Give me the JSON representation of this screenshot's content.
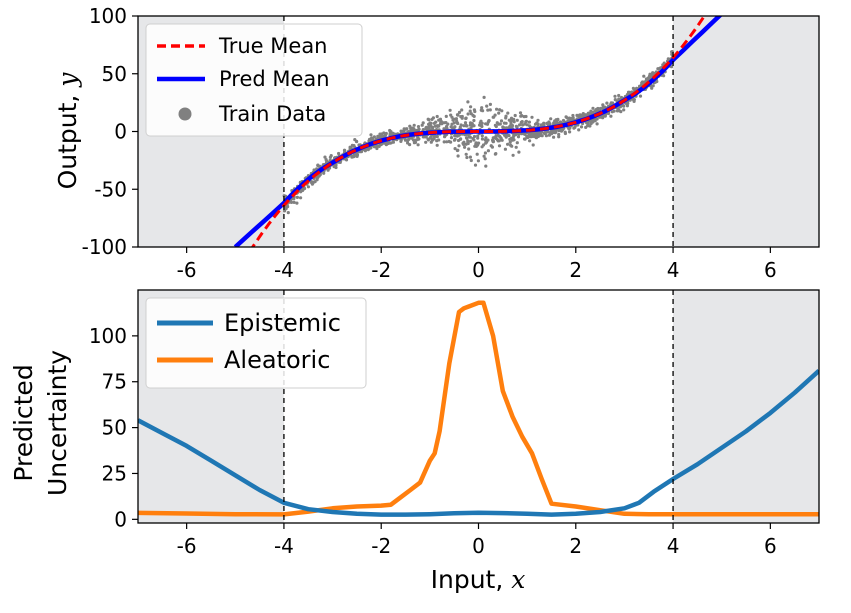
{
  "chart_data": [
    {
      "type": "line",
      "xlim": [
        -7,
        7
      ],
      "ylim": [
        -100,
        100
      ],
      "ylabel": "Output, y",
      "xticks": [
        -6,
        -4,
        -2,
        0,
        2,
        4,
        6
      ],
      "yticks": [
        -100,
        -50,
        0,
        50,
        100
      ],
      "train_region": [
        -4,
        4
      ],
      "shaded_regions": [
        [
          -7,
          -4
        ],
        [
          4,
          7
        ]
      ],
      "legend_position": "top-left",
      "series": [
        {
          "name": "True Mean",
          "style": "dashed",
          "color": "#ff0000",
          "formula": "y = x^3"
        },
        {
          "name": "Pred Mean",
          "style": "solid",
          "color": "#0000ff",
          "x": [
            -5.0,
            -4.8,
            -4.6,
            -4.4,
            -4.2,
            -4.0,
            -3.8,
            -3.6,
            -3.4,
            -3.2,
            -3.0,
            -2.8,
            -2.6,
            -2.4,
            -2.2,
            -2.0,
            -1.8,
            -1.6,
            -1.4,
            -1.2,
            -1.0,
            -0.8,
            -0.6,
            -0.4,
            -0.2,
            0.0,
            0.2,
            0.4,
            0.6,
            0.8,
            1.0,
            1.2,
            1.4,
            1.6,
            1.8,
            2.0,
            2.2,
            2.4,
            2.6,
            2.8,
            3.0,
            3.2,
            3.4,
            3.6,
            3.8,
            4.0,
            4.2,
            4.4,
            4.6,
            4.8,
            5.0
          ],
          "y": [
            -100,
            -92.4,
            -84.8,
            -77.2,
            -69.6,
            -62,
            -53,
            -45,
            -38,
            -32,
            -27,
            -22,
            -17.5,
            -13.8,
            -10.6,
            -8,
            -5.8,
            -4,
            -2.7,
            -1.7,
            -1,
            -0.6,
            -0.3,
            -0.1,
            0,
            0,
            0,
            0.1,
            0.3,
            0.6,
            1,
            1.7,
            2.7,
            4,
            5.8,
            8,
            10.6,
            13.8,
            17.5,
            22,
            27,
            32,
            38,
            45,
            53,
            62,
            70,
            78,
            86,
            94,
            102
          ]
        },
        {
          "name": "Train Data",
          "style": "scatter",
          "color": "#808080",
          "x_range": [
            -4,
            4
          ],
          "model": "y = x^3 + noise, noise largest near x = 0"
        }
      ]
    },
    {
      "type": "line",
      "xlim": [
        -7,
        7
      ],
      "ylim": [
        -2,
        125
      ],
      "xlabel": "Input, x",
      "ylabel": "Predicted Uncertainty",
      "xticks": [
        -6,
        -4,
        -2,
        0,
        2,
        4,
        6
      ],
      "yticks": [
        0,
        25,
        50,
        75,
        100
      ],
      "train_region": [
        -4,
        4
      ],
      "shaded_regions": [
        [
          -7,
          -4
        ],
        [
          4,
          7
        ]
      ],
      "legend_position": "top-left",
      "series": [
        {
          "name": "Epistemic",
          "color": "#1f77b4",
          "x": [
            -7,
            -6.5,
            -6,
            -5.5,
            -5,
            -4.5,
            -4,
            -3.5,
            -3,
            -2.5,
            -2,
            -1.5,
            -1,
            -0.5,
            0,
            0.5,
            1,
            1.5,
            2,
            2.5,
            3,
            3.3,
            3.6,
            4,
            4.5,
            5,
            5.5,
            6,
            6.5,
            7
          ],
          "y": [
            54,
            47,
            40,
            32,
            24,
            16,
            9,
            5.5,
            4,
            3,
            2.6,
            2.6,
            2.8,
            3.3,
            3.6,
            3.4,
            3,
            2.6,
            3,
            4,
            6,
            9,
            15,
            22,
            30,
            39,
            48,
            58,
            69,
            81
          ]
        },
        {
          "name": "Aleatoric",
          "color": "#ff7f0e",
          "x": [
            -7,
            -6,
            -5,
            -4,
            -3.5,
            -3,
            -2.5,
            -2,
            -1.8,
            -1.6,
            -1.4,
            -1.2,
            -1.0,
            -0.9,
            -0.8,
            -0.6,
            -0.4,
            -0.3,
            -0.2,
            0,
            0.1,
            0.3,
            0.5,
            0.7,
            0.9,
            1.1,
            1.3,
            1.5,
            2,
            2.5,
            3,
            3.5,
            4,
            5,
            6,
            7
          ],
          "y": [
            3.5,
            3.2,
            2.8,
            2.7,
            4.2,
            6,
            7,
            7.5,
            8,
            12,
            16,
            20,
            32,
            36,
            48,
            85,
            113,
            115,
            116,
            118,
            118,
            100,
            70,
            56,
            45,
            36,
            22,
            8.5,
            7,
            5,
            3,
            2.8,
            2.8,
            2.8,
            2.8,
            2.8
          ]
        }
      ]
    }
  ]
}
